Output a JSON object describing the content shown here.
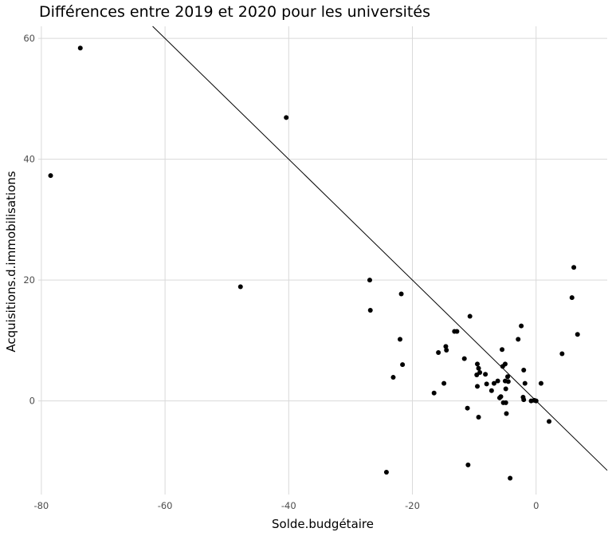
{
  "chart_data": {
    "type": "scatter",
    "title": "Différences entre 2019 et 2020 pour les universités",
    "xlabel": "Solde.budgétaire",
    "ylabel": "Acquisitions.d.immobilisations",
    "xlim": [
      -80.5,
      11.5
    ],
    "ylim": [
      -15.5,
      62
    ],
    "xticks": [
      -80,
      -60,
      -40,
      -20,
      0
    ],
    "yticks": [
      0,
      20,
      40,
      60
    ],
    "xtick_labels": [
      "-80",
      "-60",
      "-40",
      "-20",
      "0"
    ],
    "ytick_labels": [
      "0",
      "20",
      "40",
      "60"
    ],
    "grid": true,
    "reference_line": {
      "slope": -1,
      "intercept": 0
    },
    "points": [
      {
        "x": -73.7,
        "y": 58.4
      },
      {
        "x": -78.5,
        "y": 37.3
      },
      {
        "x": -40.4,
        "y": 46.9
      },
      {
        "x": -47.8,
        "y": 18.9
      },
      {
        "x": -26.9,
        "y": 20.0
      },
      {
        "x": -26.8,
        "y": 15.0
      },
      {
        "x": -21.8,
        "y": 17.7
      },
      {
        "x": -22.0,
        "y": 10.2
      },
      {
        "x": -21.6,
        "y": 6.0
      },
      {
        "x": -23.1,
        "y": 3.9
      },
      {
        "x": -24.2,
        "y": -11.8
      },
      {
        "x": -16.5,
        "y": 1.3
      },
      {
        "x": -15.8,
        "y": 8.0
      },
      {
        "x": -14.6,
        "y": 9.0
      },
      {
        "x": -14.5,
        "y": 8.4
      },
      {
        "x": -14.9,
        "y": 2.9
      },
      {
        "x": -13.2,
        "y": 11.5
      },
      {
        "x": -12.8,
        "y": 11.5
      },
      {
        "x": -11.6,
        "y": 7.0
      },
      {
        "x": -10.7,
        "y": 14.0
      },
      {
        "x": -11.1,
        "y": -1.2
      },
      {
        "x": -11.0,
        "y": -10.6
      },
      {
        "x": -9.5,
        "y": 6.1
      },
      {
        "x": -9.3,
        "y": 5.4
      },
      {
        "x": -9.6,
        "y": 4.3
      },
      {
        "x": -9.1,
        "y": 4.7
      },
      {
        "x": -9.5,
        "y": 2.4
      },
      {
        "x": -9.3,
        "y": -2.7
      },
      {
        "x": -8.2,
        "y": 4.4
      },
      {
        "x": -8.0,
        "y": 2.8
      },
      {
        "x": -7.2,
        "y": 1.7
      },
      {
        "x": -6.8,
        "y": 2.9
      },
      {
        "x": -6.2,
        "y": 3.3
      },
      {
        "x": -5.5,
        "y": 8.5
      },
      {
        "x": -5.4,
        "y": 5.7
      },
      {
        "x": -5.0,
        "y": 6.1
      },
      {
        "x": -5.7,
        "y": 0.7
      },
      {
        "x": -5.9,
        "y": 0.5
      },
      {
        "x": -5.3,
        "y": -0.3
      },
      {
        "x": -4.9,
        "y": -0.3
      },
      {
        "x": -5.0,
        "y": 3.3
      },
      {
        "x": -4.6,
        "y": 4.0
      },
      {
        "x": -4.5,
        "y": 3.2
      },
      {
        "x": -4.9,
        "y": 2.0
      },
      {
        "x": -4.8,
        "y": -2.1
      },
      {
        "x": -4.2,
        "y": -12.8
      },
      {
        "x": -2.9,
        "y": 10.2
      },
      {
        "x": -2.4,
        "y": 12.4
      },
      {
        "x": -2.0,
        "y": 5.1
      },
      {
        "x": -1.8,
        "y": 2.9
      },
      {
        "x": -2.1,
        "y": 0.6
      },
      {
        "x": -2.0,
        "y": 0.2
      },
      {
        "x": -0.8,
        "y": 0.0
      },
      {
        "x": -0.3,
        "y": 0.1
      },
      {
        "x": 0.0,
        "y": 0.0
      },
      {
        "x": 0.8,
        "y": 2.9
      },
      {
        "x": 2.1,
        "y": -3.4
      },
      {
        "x": 4.2,
        "y": 7.8
      },
      {
        "x": 5.8,
        "y": 17.1
      },
      {
        "x": 6.1,
        "y": 22.1
      },
      {
        "x": 6.7,
        "y": 11.0
      }
    ]
  }
}
